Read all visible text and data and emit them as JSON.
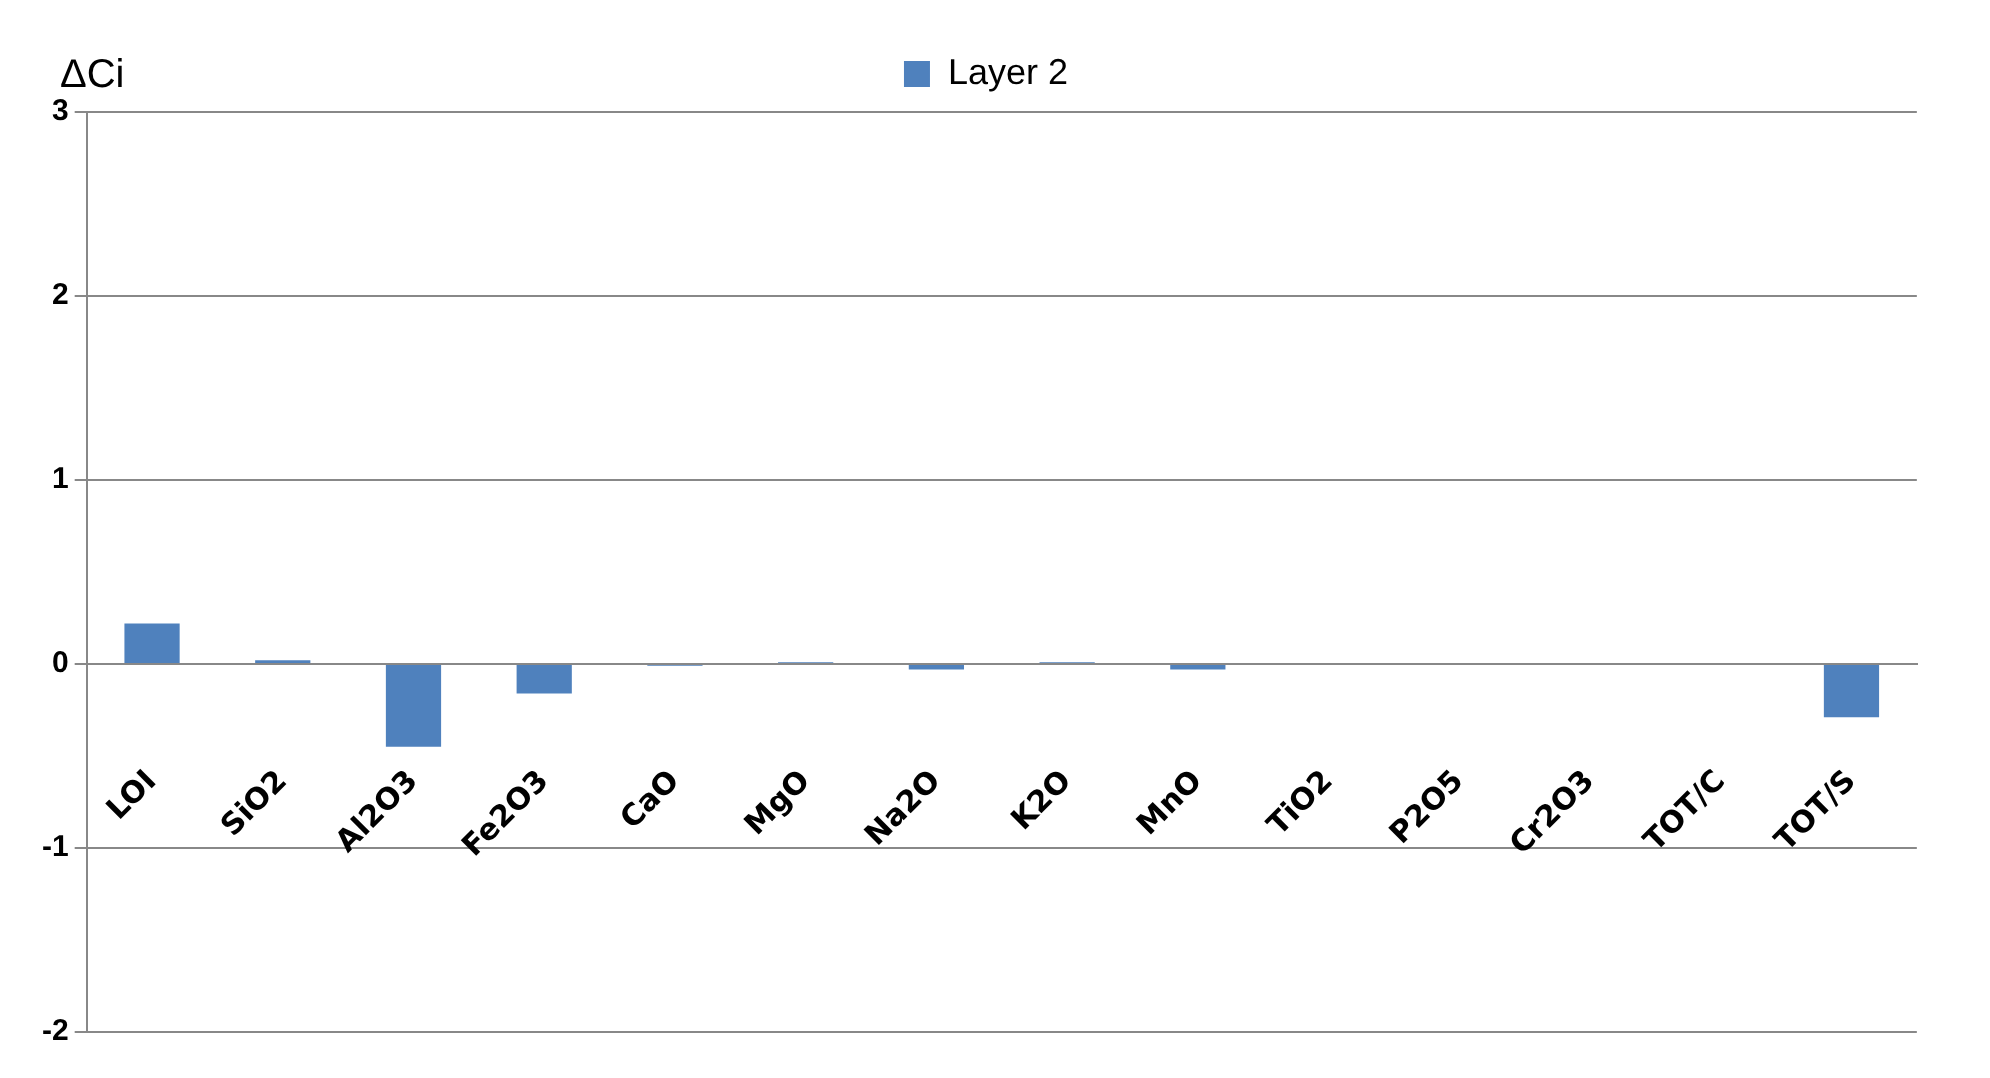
{
  "chart_data": {
    "type": "bar",
    "ylabel": "ΔCi",
    "categories": [
      "LOI",
      "SiO2",
      "Al2O3",
      "Fe2O3",
      "CaO",
      "MgO",
      "Na2O",
      "K2O",
      "MnO",
      "TiO2",
      "P2O5",
      "Cr2O3",
      "TOT/C",
      "TOT/S"
    ],
    "series": [
      {
        "name": "Layer 2",
        "color": "#4f81bd",
        "values": [
          0.22,
          0.02,
          -0.45,
          -0.16,
          -0.01,
          0.01,
          -0.03,
          0.01,
          -0.03,
          0,
          0,
          0,
          0,
          -0.29
        ]
      }
    ],
    "ylim": [
      -2,
      3
    ],
    "yticks": [
      -2,
      -1,
      0,
      1,
      2,
      3
    ],
    "grid": "y",
    "legend": "top"
  }
}
